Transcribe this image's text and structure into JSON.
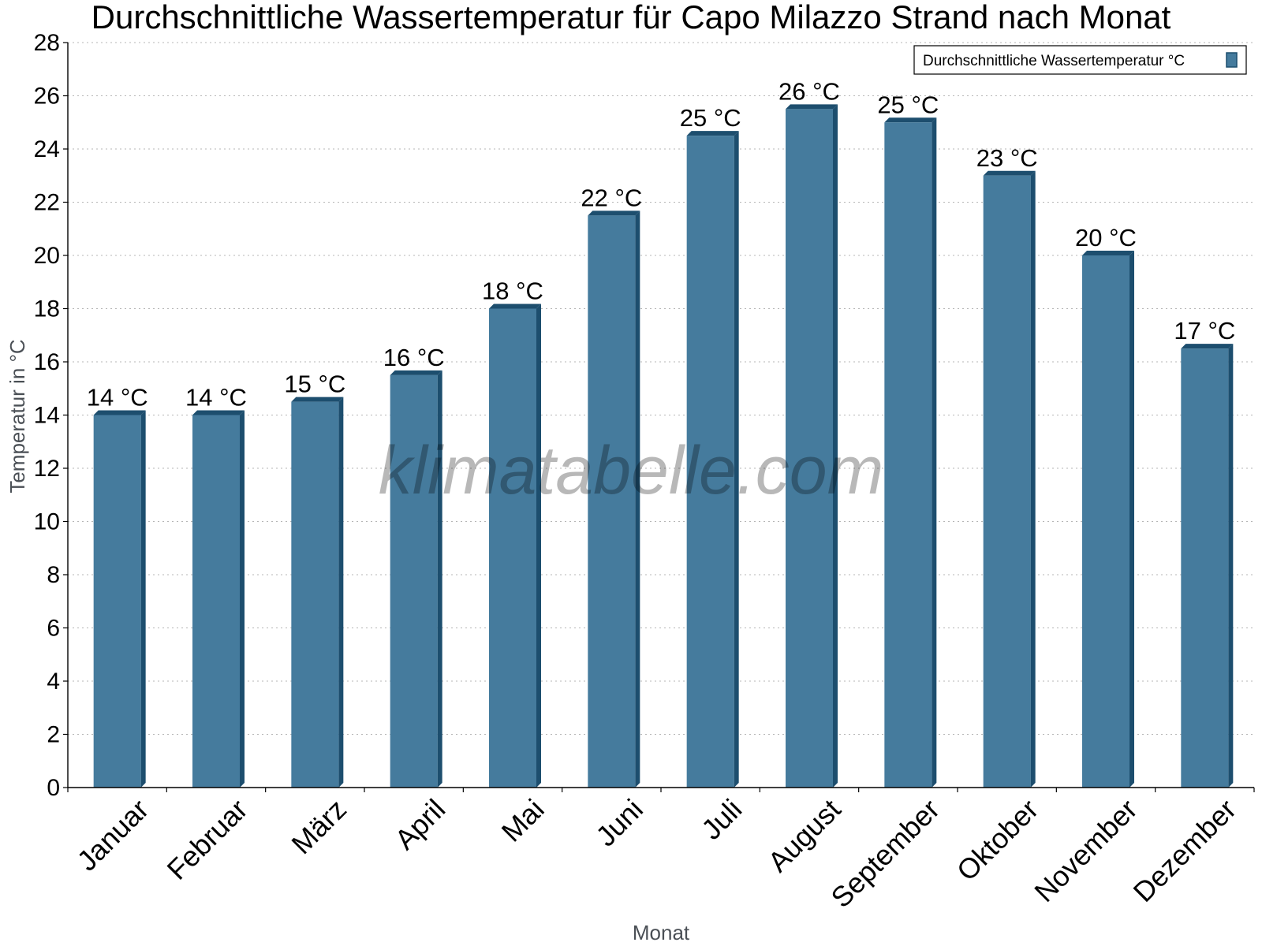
{
  "chart_data": {
    "type": "bar",
    "title": "Durchschnittliche Wassertemperatur für Capo Milazzo Strand nach Monat",
    "xlabel": "Monat",
    "ylabel": "Temperatur in °C",
    "ylim": [
      0,
      28
    ],
    "yticks": [
      0,
      2,
      4,
      6,
      8,
      10,
      12,
      14,
      16,
      18,
      20,
      22,
      24,
      26,
      28
    ],
    "grid": true,
    "legend_position": "top-right",
    "categories": [
      "Januar",
      "Februar",
      "März",
      "April",
      "Mai",
      "Juni",
      "Juli",
      "August",
      "September",
      "Oktober",
      "November",
      "Dezember"
    ],
    "series": [
      {
        "name": "Durchschnittliche Wassertemperatur °C",
        "values": [
          14,
          14,
          14.5,
          15.5,
          18,
          21.5,
          24.5,
          25.5,
          25,
          23,
          20,
          16.5
        ],
        "labels": [
          "14 °C",
          "14 °C",
          "15 °C",
          "16 °C",
          "18 °C",
          "22 °C",
          "25 °C",
          "26 °C",
          "25 °C",
          "23 °C",
          "20 °C",
          "17 °C"
        ],
        "color": "#457b9d",
        "edge_color": "#1d4e6e"
      }
    ],
    "watermark": "klimatabelle.com"
  }
}
